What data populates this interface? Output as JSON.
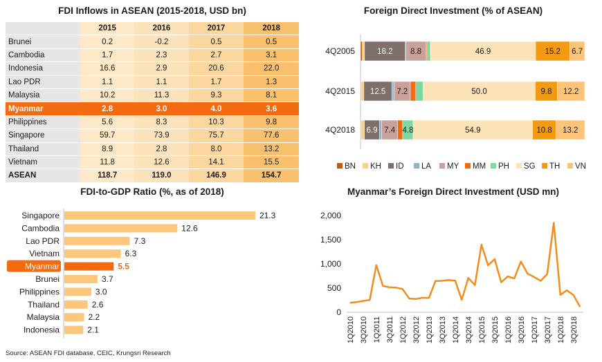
{
  "source": "Source: ASEAN FDI database, CEIC, Krungsri Research",
  "chart_data": [
    {
      "type": "table",
      "title": "FDI Inflows in ASEAN (2015-2018, USD bn)",
      "columns": [
        "",
        "2015",
        "2016",
        "2017",
        "2018"
      ],
      "rows": [
        {
          "country": "Brunei",
          "values": [
            "0.2",
            "-0.2",
            "0.5",
            "0.5"
          ]
        },
        {
          "country": "Cambodia",
          "values": [
            "1.7",
            "2.3",
            "2.7",
            "3.1"
          ]
        },
        {
          "country": "Indonesia",
          "values": [
            "16.6",
            "2.9",
            "20.6",
            "22.0"
          ]
        },
        {
          "country": "Lao PDR",
          "values": [
            "1.1",
            "1.1",
            "1.7",
            "1.3"
          ]
        },
        {
          "country": "Malaysia",
          "values": [
            "10.2",
            "11.3",
            "9.3",
            "8.1"
          ]
        },
        {
          "country": "Myanmar",
          "values": [
            "2.8",
            "3.0",
            "4.0",
            "3.6"
          ],
          "highlight": true
        },
        {
          "country": "Philippines",
          "values": [
            "5.6",
            "8.3",
            "10.3",
            "9.8"
          ]
        },
        {
          "country": "Singapore",
          "values": [
            "59.7",
            "73.9",
            "75.7",
            "77.6"
          ]
        },
        {
          "country": "Thailand",
          "values": [
            "8.9",
            "2.8",
            "8.0",
            "13.2"
          ]
        },
        {
          "country": "Vietnam",
          "values": [
            "11.8",
            "12.6",
            "14.1",
            "15.5"
          ]
        },
        {
          "country": "ASEAN",
          "values": [
            "118.7",
            "119.0",
            "146.9",
            "154.7"
          ],
          "total": true
        }
      ]
    },
    {
      "type": "bar",
      "stacked": true,
      "orientation": "horizontal",
      "title": "Foreign Direct Investment (% of ASEAN)",
      "categories": [
        "4Q2005",
        "4Q2015",
        "4Q2018"
      ],
      "legend_position": "bottom",
      "series": [
        {
          "name": "BN",
          "color": "#c55a11",
          "values": [
            0.8,
            0.3,
            0.3
          ],
          "labels": [
            "",
            "",
            ""
          ]
        },
        {
          "name": "KH",
          "color": "#fbd089",
          "values": [
            1.0,
            1.2,
            1.5
          ],
          "labels": [
            "",
            "",
            ""
          ]
        },
        {
          "name": "ID",
          "color": "#7f6f6a",
          "values": [
            18.2,
            12.5,
            6.9
          ],
          "labels": [
            "18.2",
            "12.5",
            "6.9"
          ]
        },
        {
          "name": "LA",
          "color": "#8db4c2",
          "values": [
            0.3,
            1.0,
            1.0
          ],
          "labels": [
            "",
            "",
            ""
          ]
        },
        {
          "name": "MY",
          "color": "#c9a09a",
          "values": [
            8.8,
            7.2,
            7.4
          ],
          "labels": [
            "8.8",
            "7.2",
            "7.4"
          ]
        },
        {
          "name": "MM",
          "color": "#f26b10",
          "values": [
            0.5,
            2.4,
            2.3
          ],
          "labels": [
            "",
            "",
            ""
          ]
        },
        {
          "name": "PH",
          "color": "#7fd8a2",
          "values": [
            1.6,
            3.3,
            4.8
          ],
          "labels": [
            "",
            "",
            "4.8"
          ]
        },
        {
          "name": "SG",
          "color": "#fde3b8",
          "values": [
            46.9,
            50.0,
            54.9
          ],
          "labels": [
            "46.9",
            "50.0",
            "54.9"
          ]
        },
        {
          "name": "TH",
          "color": "#f39a12",
          "values": [
            15.2,
            9.8,
            10.8
          ],
          "labels": [
            "15.2",
            "9.8",
            "10.8"
          ]
        },
        {
          "name": "VN",
          "color": "#fcc37a",
          "values": [
            6.7,
            12.2,
            13.2
          ],
          "labels": [
            "6.7",
            "12.2",
            "13.2"
          ]
        }
      ]
    },
    {
      "type": "bar",
      "orientation": "horizontal",
      "title": "FDI-to-GDP Ratio (%, as of 2018)",
      "categories": [
        "Singapore",
        "Cambodia",
        "Lao PDR",
        "Vietnam",
        "Myanmar",
        "Brunei",
        "Philippines",
        "Thailand",
        "Malaysia",
        "Indonesia"
      ],
      "values": [
        21.3,
        12.6,
        7.3,
        6.3,
        5.5,
        3.7,
        3.0,
        2.6,
        2.2,
        2.1
      ],
      "highlight": "Myanmar",
      "bar_color": "#fcc77a",
      "highlight_color": "#f26b10"
    },
    {
      "type": "line",
      "title": "Myanmar’s Foreign Direct Investment (USD mn)",
      "ylim": [
        0,
        2000
      ],
      "yticks": [
        "0",
        "500",
        "1,000",
        "1,500",
        "2,000"
      ],
      "ytick_values": [
        0,
        500,
        1000,
        1500,
        2000
      ],
      "color": "#f28c1d",
      "x": [
        "1Q2010",
        "2Q2010",
        "3Q2010",
        "4Q2010",
        "1Q2011",
        "2Q2011",
        "3Q2011",
        "4Q2011",
        "1Q2012",
        "2Q2012",
        "3Q2012",
        "4Q2012",
        "1Q2013",
        "2Q2013",
        "3Q2013",
        "4Q2013",
        "1Q2014",
        "2Q2014",
        "3Q2014",
        "4Q2014",
        "1Q2015",
        "2Q2015",
        "3Q2015",
        "4Q2015",
        "1Q2016",
        "2Q2016",
        "3Q2016",
        "4Q2016",
        "1Q2017",
        "2Q2017",
        "3Q2017",
        "4Q2017",
        "1Q2018",
        "2Q2018",
        "3Q2018",
        "4Q2018"
      ],
      "xtick_labels": [
        "1Q2010",
        "3Q2010",
        "1Q2011",
        "3Q2011",
        "1Q2012",
        "3Q2012",
        "1Q2013",
        "3Q2013",
        "1Q2014",
        "3Q2014",
        "1Q2015",
        "3Q2015",
        "1Q2016",
        "3Q2016",
        "1Q2017",
        "3Q2017",
        "1Q2018",
        "3Q2018"
      ],
      "values": [
        195,
        210,
        235,
        255,
        975,
        545,
        515,
        510,
        480,
        285,
        275,
        300,
        295,
        645,
        650,
        665,
        655,
        260,
        710,
        560,
        1400,
        970,
        1100,
        620,
        740,
        700,
        1050,
        800,
        730,
        650,
        790,
        1850,
        360,
        455,
        355,
        110
      ]
    }
  ]
}
